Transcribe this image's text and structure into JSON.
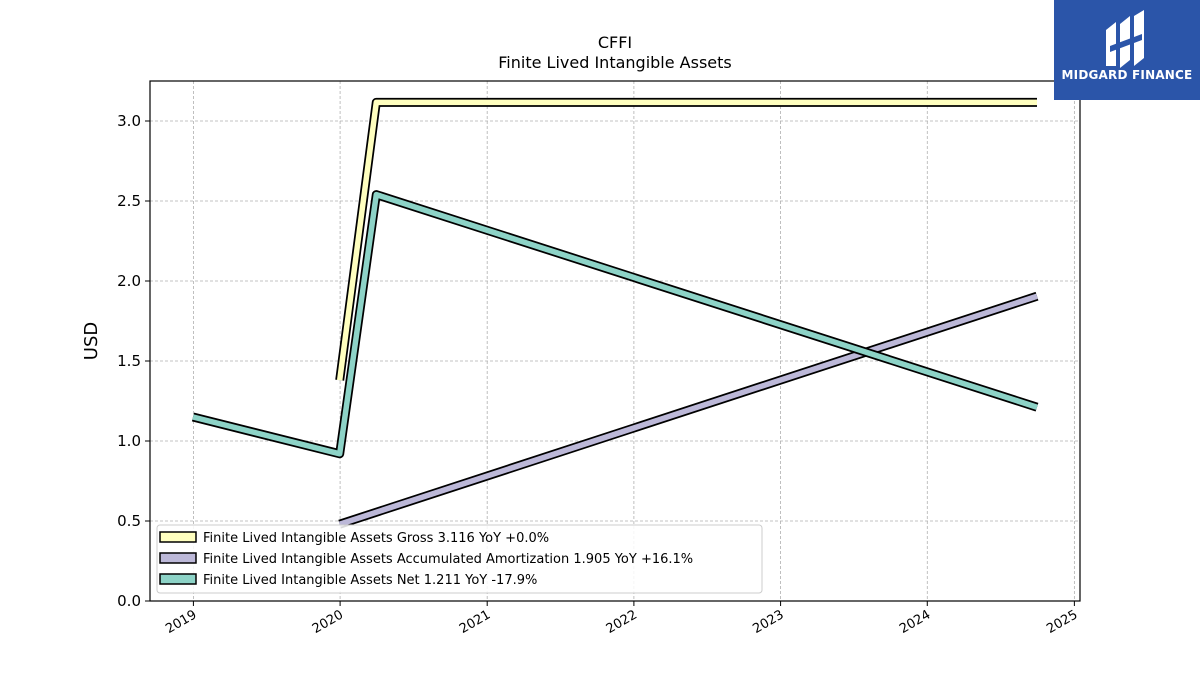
{
  "chart_data": {
    "type": "line",
    "title": "CFFI",
    "subtitle": "Finite Lived Intangible Assets",
    "ylabel": "USD",
    "xlabel": "",
    "ylim": [
      0,
      3.25
    ],
    "xlim": [
      "2018-09-15",
      "2025-01-15"
    ],
    "y_ticks": [
      "0.0",
      "0.5",
      "1.0",
      "1.5",
      "2.0",
      "2.5",
      "3.0"
    ],
    "x_ticks": [
      "2019",
      "2020",
      "2021",
      "2022",
      "2023",
      "2024",
      "2025"
    ],
    "grid": true,
    "legend_position": "lower-left",
    "series": [
      {
        "name": "Finite Lived Intangible Assets Gross",
        "legend_label": "Finite Lived Intangible Assets Gross  3.116 YoY +0.0%",
        "color": "#ffffbf",
        "points": [
          [
            "2019-12-31",
            1.38
          ],
          [
            "2020-03-31",
            3.116
          ],
          [
            "2024-09-30",
            3.116
          ]
        ]
      },
      {
        "name": "Finite Lived Intangible Assets Accumulated Amortization",
        "legend_label": "Finite Lived Intangible Assets Accumulated Amortization  1.905 YoY +16.1%",
        "color": "#bcb8d8",
        "points": [
          [
            "2019-12-31",
            0.48
          ],
          [
            "2024-09-30",
            1.905
          ]
        ]
      },
      {
        "name": "Finite Lived Intangible Assets Net",
        "legend_label": "Finite Lived Intangible Assets Net  1.211 YoY -17.9%",
        "color": "#8dd3c7",
        "points": [
          [
            "2018-12-31",
            1.15
          ],
          [
            "2019-12-31",
            0.92
          ],
          [
            "2020-03-31",
            2.54
          ],
          [
            "2024-09-30",
            1.211
          ]
        ]
      }
    ]
  },
  "logo": {
    "text": "MIDGARD FINANCE",
    "color": "#2b55a9"
  }
}
